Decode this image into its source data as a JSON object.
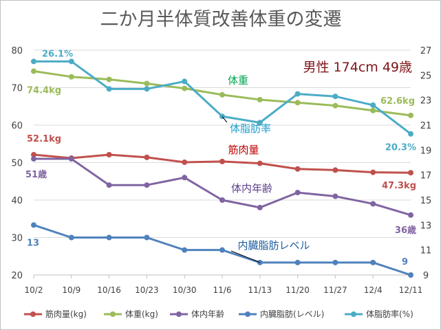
{
  "chart_data": {
    "type": "line",
    "title": "二か月半体質改善体重の変遷",
    "info": "男性 174cm 49歳",
    "categories": [
      "10/2",
      "10/9",
      "10/16",
      "10/23",
      "10/30",
      "11/6",
      "11/13",
      "11/20",
      "11/27",
      "12/4",
      "12/11"
    ],
    "y_left": {
      "min": 20,
      "max": 80,
      "ticks": [
        "20",
        "30",
        "40",
        "50",
        "60",
        "70",
        "80"
      ]
    },
    "y_right": {
      "min": 9,
      "max": 27,
      "ticks": [
        "9",
        "11",
        "13",
        "15",
        "17",
        "19",
        "21",
        "23",
        "25",
        "27"
      ]
    },
    "grid": true,
    "legend_position": "bottom",
    "series": [
      {
        "name": "筋肉量(kg)",
        "axis": "left",
        "color": "#c0504d",
        "inline_label": "筋肉量",
        "start_label": "52.1kg",
        "end_label": "47.3kg",
        "values": [
          52.1,
          51.2,
          52.1,
          51.4,
          50.1,
          50.3,
          49.8,
          48.3,
          48.0,
          47.4,
          47.3
        ]
      },
      {
        "name": "体重(kg)",
        "axis": "left",
        "color": "#9bbb59",
        "inline_label": "体重",
        "start_label": "74.4kg",
        "end_label": "62.6kg",
        "values": [
          74.4,
          72.9,
          72.2,
          71.1,
          69.8,
          68.1,
          66.8,
          66.0,
          65.2,
          63.9,
          62.6
        ]
      },
      {
        "name": "体内年齢",
        "axis": "left",
        "color": "#8064a2",
        "inline_label": "体内年齢",
        "start_label": "51歳",
        "end_label": "36歳",
        "values": [
          51,
          51,
          44,
          44,
          46,
          40,
          38,
          42,
          41,
          39,
          36
        ]
      },
      {
        "name": "内臓脂肪(レベル)",
        "axis": "right",
        "color": "#4f81bd",
        "inline_label": "内臓脂肪レベル",
        "start_label": "13",
        "end_label": "9",
        "values": [
          13,
          12,
          12,
          12,
          11,
          11,
          10,
          10,
          10,
          10,
          9
        ]
      },
      {
        "name": "体脂肪率(%)",
        "axis": "right",
        "color": "#4bacc6",
        "inline_label": "体脂肪率",
        "start_label": "26.1%",
        "end_label": "20.3%",
        "values": [
          26.1,
          26.1,
          23.9,
          23.9,
          24.5,
          21.7,
          21.2,
          23.5,
          23.3,
          22.6,
          20.3
        ]
      }
    ]
  }
}
